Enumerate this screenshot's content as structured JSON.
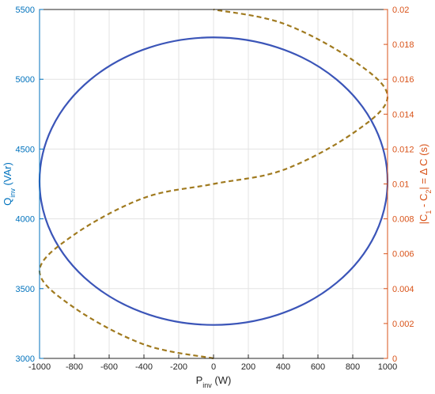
{
  "chart_data": {
    "type": "line",
    "title": "",
    "xlabel": {
      "main": "P",
      "sub": "inv",
      "unit": " (W)"
    },
    "ylabel_left": {
      "main": "Q",
      "sub": "inv",
      "unit": " (VAr)"
    },
    "ylabel_right": {
      "pre": "|C",
      "sub1": "1",
      "mid": " - C",
      "sub2": "2",
      "post": "| = Δ C (s)"
    },
    "xlim": [
      -1000,
      1000
    ],
    "ylim_left": [
      3000,
      5500
    ],
    "ylim_right": [
      0,
      0.02
    ],
    "x_ticks": [
      "-1000",
      "-800",
      "-600",
      "-400",
      "-200",
      "0",
      "200",
      "400",
      "600",
      "800",
      "1000"
    ],
    "y_left_ticks": [
      "3000",
      "3500",
      "4000",
      "4500",
      "5000",
      "5500"
    ],
    "y_right_ticks": [
      "0",
      "0.002",
      "0.004",
      "0.006",
      "0.008",
      "0.01",
      "0.012",
      "0.014",
      "0.016",
      "0.018",
      "0.02"
    ],
    "grid": true,
    "colors": {
      "left_axis": "#0072BD",
      "right_axis": "#D95319",
      "ellipse": "#3b55b8",
      "dashed": "#a07a1f",
      "grid": "#e3e3e3",
      "frame": "#262626"
    },
    "series": [
      {
        "axis": "left",
        "style": "solid",
        "center": [
          0,
          4270
        ],
        "semi_axis_p": 1000,
        "semi_axis_q": 1030
      },
      {
        "axis": "right",
        "style": "dashed",
        "x": [
          0,
          -400,
          -800,
          -1000,
          -800,
          -400,
          0,
          400,
          800,
          1000,
          800,
          400,
          0
        ],
        "y": [
          0,
          0.0008,
          0.0029,
          0.005,
          0.0071,
          0.0092,
          0.01,
          0.0108,
          0.0129,
          0.015,
          0.0171,
          0.0192,
          0.02
        ]
      }
    ]
  }
}
